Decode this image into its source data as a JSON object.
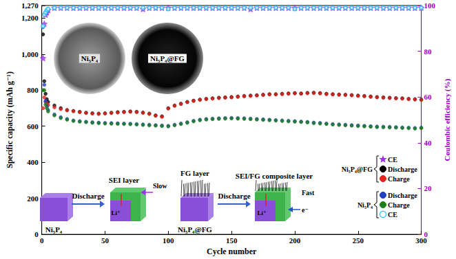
{
  "chart_data": {
    "type": "scatter",
    "x_label": "Cycle number",
    "y_label": "Specific capacity (mAh g⁻¹)",
    "y2_label": "Coulombic efficiency (%)",
    "xlim": [
      0,
      300
    ],
    "xticks": [
      0,
      50,
      100,
      150,
      200,
      250,
      300
    ],
    "ylim": [
      0,
      1270
    ],
    "yticks": [
      0,
      200,
      400,
      600,
      800,
      1000,
      1200
    ],
    "y2lim": [
      0,
      100
    ],
    "y2ticks": [
      0,
      20,
      40,
      60,
      80,
      100
    ],
    "grid": false,
    "x": [
      1,
      2,
      3,
      4,
      5,
      10,
      15,
      20,
      25,
      30,
      35,
      40,
      45,
      50,
      55,
      60,
      65,
      70,
      75,
      80,
      85,
      90,
      95,
      100,
      105,
      110,
      115,
      120,
      125,
      130,
      135,
      140,
      145,
      150,
      155,
      160,
      165,
      170,
      175,
      180,
      185,
      190,
      195,
      200,
      205,
      210,
      215,
      220,
      225,
      230,
      235,
      240,
      245,
      250,
      255,
      260,
      265,
      270,
      275,
      280,
      285,
      290,
      295,
      300
    ],
    "series": [
      {
        "name": "CE",
        "group": "Ni₅P₄@FG",
        "color": "#9b30e8",
        "marker": "star",
        "axis": "y2",
        "values": [
          77,
          92,
          96,
          97,
          98,
          99,
          99,
          99,
          99,
          99,
          99,
          99,
          99,
          99,
          99,
          99,
          99,
          99,
          99,
          98.5,
          99,
          99,
          99,
          99,
          99,
          99,
          99,
          99,
          99,
          99,
          99,
          99,
          99,
          99,
          99,
          99,
          98.5,
          99,
          99,
          99,
          99,
          99,
          99,
          99,
          99,
          99,
          99,
          99,
          99,
          99,
          99,
          99,
          99,
          99,
          99,
          99,
          99,
          99,
          99,
          99,
          99,
          99,
          99,
          99
        ]
      },
      {
        "name": "Discharge",
        "group": "Ni₅P₄@FG",
        "color": "#000000",
        "marker": "circle",
        "values": [
          1110,
          850,
          780,
          750,
          735,
          715,
          700,
          690,
          685,
          680,
          675,
          672,
          670,
          672,
          675,
          678,
          680,
          682,
          680,
          676,
          670,
          660,
          655,
          700,
          715,
          725,
          735,
          742,
          748,
          752,
          755,
          758,
          760,
          762,
          765,
          768,
          770,
          772,
          775,
          778,
          778,
          780,
          782,
          784,
          782,
          785,
          786,
          784,
          780,
          778,
          776,
          775,
          773,
          770,
          768,
          765,
          762,
          760,
          758,
          756,
          755,
          752,
          750,
          748
        ]
      },
      {
        "name": "Charge",
        "group": "Ni₅P₄@FG",
        "color": "#e3241b",
        "marker": "circle",
        "values": [
          700,
          760,
          735,
          725,
          718,
          705,
          695,
          688,
          683,
          678,
          673,
          670,
          668,
          670,
          673,
          676,
          678,
          680,
          678,
          674,
          668,
          658,
          652,
          698,
          713,
          723,
          733,
          740,
          746,
          750,
          753,
          756,
          758,
          760,
          763,
          766,
          768,
          770,
          773,
          776,
          776,
          778,
          780,
          782,
          780,
          783,
          784,
          782,
          778,
          776,
          774,
          773,
          771,
          768,
          766,
          763,
          760,
          758,
          756,
          754,
          753,
          750,
          748,
          746
        ]
      },
      {
        "name": "Discharge",
        "group": "Ni₅P₄",
        "color": "#1f3fc4",
        "marker": "circle",
        "values": [
          1150,
          830,
          740,
          710,
          690,
          665,
          650,
          640,
          632,
          628,
          625,
          622,
          620,
          618,
          617,
          616,
          615,
          614,
          612,
          610,
          608,
          606,
          604,
          602,
          608,
          615,
          622,
          630,
          636,
          640,
          642,
          644,
          645,
          646,
          645,
          644,
          642,
          640,
          638,
          636,
          634,
          632,
          630,
          628,
          626,
          624,
          620,
          618,
          615,
          612,
          610,
          608,
          606,
          604,
          602,
          600,
          598,
          597,
          596,
          595,
          593,
          592,
          590,
          592
        ]
      },
      {
        "name": "Charge",
        "group": "Ni₅P₄",
        "color": "#1b7d1b",
        "marker": "circle",
        "values": [
          800,
          800,
          720,
          700,
          682,
          660,
          645,
          636,
          629,
          625,
          622,
          619,
          617,
          615,
          614,
          613,
          612,
          611,
          609,
          607,
          605,
          603,
          601,
          599,
          605,
          612,
          619,
          627,
          633,
          637,
          639,
          641,
          642,
          643,
          642,
          641,
          639,
          637,
          635,
          633,
          631,
          629,
          627,
          625,
          623,
          621,
          617,
          615,
          612,
          609,
          607,
          605,
          603,
          601,
          599,
          597,
          595,
          594,
          593,
          592,
          590,
          589,
          587,
          589
        ]
      },
      {
        "name": "CE",
        "group": "Ni₅P₄",
        "color": "#2bc3ee",
        "marker": "open_circle",
        "axis": "y2",
        "values": [
          91,
          96,
          97,
          98,
          98.5,
          99,
          99,
          99,
          99,
          99,
          99,
          99,
          99,
          99,
          99,
          99,
          99,
          99,
          99,
          99,
          99,
          99,
          99,
          98.5,
          99,
          99,
          99,
          99,
          99,
          99,
          99,
          99,
          99,
          99,
          99,
          99,
          99,
          99,
          99,
          99,
          99,
          99,
          99,
          98.5,
          99,
          99,
          99,
          99,
          99,
          99,
          99,
          99,
          99,
          99,
          99,
          99,
          99,
          99,
          99,
          99,
          99,
          99,
          99,
          99
        ]
      }
    ],
    "annotations": [
      "Ni₅P₄",
      "Ni₅P₄@FG",
      "Discharge",
      "SEI layer",
      "Slow",
      "Li⁺",
      "Ni₅P₄",
      "FG layer",
      "Ni₅P₄@FG",
      "Discharge",
      "SEI/FG composite layer",
      "Li⁺",
      "Fast",
      "e⁻"
    ]
  }
}
